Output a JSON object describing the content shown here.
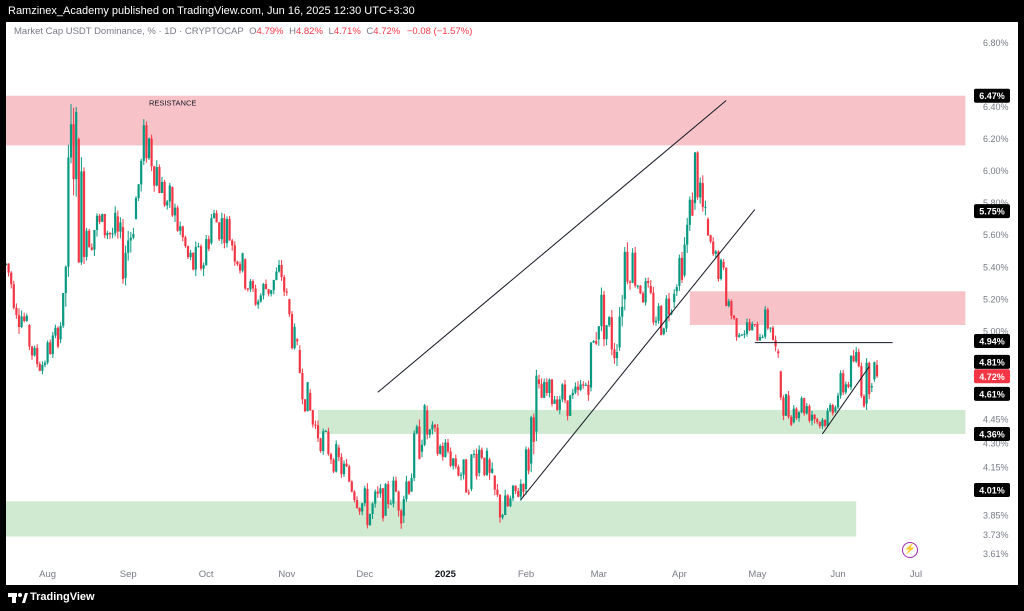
{
  "header": {
    "publish_line": "Ramzinex_Academy published on TradingView.com, Jun 16, 2025 12:30 UTC+3:30"
  },
  "legend": {
    "symbol": "Market Cap USDT Dominance, % · 1D · CRYPTOCAP",
    "o_label": "O",
    "o_value": "4.79%",
    "h_label": "H",
    "h_value": "4.82%",
    "l_label": "L",
    "l_value": "4.71%",
    "c_label": "C",
    "c_value": "4.72%",
    "change": "−0.08 (−1.57%)"
  },
  "footer": {
    "brand": "TradingView"
  },
  "icons": {
    "logo": "tradingview-logo-icon",
    "flash": "flash-icon"
  },
  "colors": {
    "up": "#089981",
    "down": "#f23645",
    "resistance_zone": "#f7b8be",
    "support_zone": "#c8e6c9",
    "line": "#131722",
    "badge_dark": "#000000",
    "badge_last": "#f23645"
  },
  "chart_data": {
    "type": "candlestick",
    "symbol": "Market Cap USDT Dominance, %",
    "interval": "1D",
    "x_labels": [
      "Aug",
      "Sep",
      "Oct",
      "Nov",
      "Dec",
      "2025",
      "Feb",
      "Mar",
      "Apr",
      "May",
      "Jun",
      "Jul"
    ],
    "x_label_dates": [
      "2024-08-01",
      "2024-09-01",
      "2024-10-01",
      "2024-11-01",
      "2024-12-01",
      "2025-01-01",
      "2025-02-01",
      "2025-03-01",
      "2025-04-01",
      "2025-05-01",
      "2025-06-01",
      "2025-07-01"
    ],
    "x_range": [
      "2024-07-16",
      "2025-07-21"
    ],
    "y_ticks": [
      6.8,
      6.4,
      6.2,
      6.0,
      5.8,
      5.6,
      5.4,
      5.2,
      5.0,
      4.45,
      4.3,
      4.15,
      3.85,
      3.73,
      3.61
    ],
    "y_range": [
      3.53,
      6.93
    ],
    "y_unit": "%",
    "grid": false,
    "annotations": [
      {
        "text": "RESISTANCE",
        "date": "2024-09-09",
        "value": 6.41
      }
    ],
    "price_badges": [
      {
        "value": 6.47,
        "text": "6.47%",
        "style": "dark"
      },
      {
        "value": 5.75,
        "text": "5.75%",
        "style": "dark"
      },
      {
        "value": 4.94,
        "text": "4.94%",
        "style": "dark"
      },
      {
        "value": 4.81,
        "text": "4.81%",
        "style": "dark"
      },
      {
        "value": 4.72,
        "text": "4.72%",
        "style": "last"
      },
      {
        "value": 4.61,
        "text": "4.61%",
        "style": "dark"
      },
      {
        "value": 4.36,
        "text": "4.36%",
        "style": "dark"
      },
      {
        "value": 4.01,
        "text": "4.01%",
        "style": "dark"
      }
    ],
    "zones": [
      {
        "kind": "resistance",
        "from": "2024-07-16",
        "to": "2025-07-20",
        "top": 6.47,
        "bottom": 6.16
      },
      {
        "kind": "resistance",
        "from": "2025-04-05",
        "to": "2025-07-20",
        "top": 5.25,
        "bottom": 5.04
      },
      {
        "kind": "support",
        "from": "2024-11-13",
        "to": "2025-07-20",
        "top": 4.51,
        "bottom": 4.36
      },
      {
        "kind": "support",
        "from": "2024-07-16",
        "to": "2025-06-08",
        "top": 3.94,
        "bottom": 3.72
      }
    ],
    "trendlines": [
      {
        "from": [
          "2024-12-06",
          4.62
        ],
        "to": [
          "2025-04-19",
          6.44
        ]
      },
      {
        "from": [
          "2025-01-30",
          3.95
        ],
        "to": [
          "2025-04-30",
          5.76
        ]
      },
      {
        "from": [
          "2025-04-30",
          4.93
        ],
        "to": [
          "2025-06-22",
          4.93
        ]
      },
      {
        "from": [
          "2025-05-26",
          4.36
        ],
        "to": [
          "2025-06-13",
          4.78
        ]
      }
    ],
    "ohlc_anchors": {
      "columns": [
        "date",
        "high",
        "low"
      ],
      "rows": [
        [
          "2024-07-16",
          5.48,
          5.35
        ],
        [
          "2024-07-20",
          5.38,
          5.05
        ],
        [
          "2024-07-24",
          5.1,
          4.9
        ],
        [
          "2024-07-27",
          4.92,
          4.72
        ],
        [
          "2024-07-30",
          4.92,
          4.7
        ],
        [
          "2024-08-02",
          4.98,
          4.82
        ],
        [
          "2024-08-05",
          5.08,
          4.9
        ],
        [
          "2024-08-07",
          5.25,
          5.0
        ],
        [
          "2024-08-09",
          6.2,
          5.3
        ],
        [
          "2024-08-11",
          6.77,
          5.8
        ],
        [
          "2024-08-13",
          6.2,
          5.4
        ],
        [
          "2024-08-16",
          5.95,
          5.45
        ],
        [
          "2024-08-20",
          5.8,
          5.5
        ],
        [
          "2024-08-24",
          5.72,
          5.55
        ],
        [
          "2024-08-27",
          5.75,
          5.45
        ],
        [
          "2024-08-30",
          5.65,
          5.3
        ],
        [
          "2024-09-02",
          5.9,
          5.4
        ],
        [
          "2024-09-04",
          5.95,
          5.7
        ],
        [
          "2024-09-06",
          6.2,
          5.8
        ],
        [
          "2024-09-08",
          6.45,
          6.0
        ],
        [
          "2024-09-11",
          6.25,
          5.9
        ],
        [
          "2024-09-14",
          6.0,
          5.75
        ],
        [
          "2024-09-18",
          5.9,
          5.6
        ],
        [
          "2024-09-21",
          5.75,
          5.5
        ],
        [
          "2024-09-24",
          5.55,
          5.35
        ],
        [
          "2024-09-27",
          5.55,
          5.25
        ],
        [
          "2024-09-30",
          5.62,
          5.3
        ],
        [
          "2024-10-03",
          5.85,
          5.55
        ],
        [
          "2024-10-06",
          5.8,
          5.55
        ],
        [
          "2024-10-09",
          5.75,
          5.55
        ],
        [
          "2024-10-12",
          5.65,
          5.4
        ],
        [
          "2024-10-15",
          5.5,
          5.28
        ],
        [
          "2024-10-18",
          5.35,
          5.15
        ],
        [
          "2024-10-21",
          5.3,
          5.1
        ],
        [
          "2024-10-24",
          5.4,
          5.15
        ],
        [
          "2024-10-27",
          5.42,
          5.2
        ],
        [
          "2024-10-30",
          5.48,
          5.25
        ],
        [
          "2024-11-02",
          5.2,
          4.95
        ],
        [
          "2024-11-05",
          4.95,
          4.72
        ],
        [
          "2024-11-08",
          4.75,
          4.5
        ],
        [
          "2024-11-11",
          4.55,
          4.3
        ],
        [
          "2024-11-14",
          4.45,
          4.25
        ],
        [
          "2024-11-18",
          4.35,
          4.15
        ],
        [
          "2024-11-22",
          4.25,
          4.05
        ],
        [
          "2024-11-26",
          4.15,
          3.95
        ],
        [
          "2024-11-30",
          4.05,
          3.8
        ],
        [
          "2024-12-03",
          4.0,
          3.73
        ],
        [
          "2024-12-06",
          4.05,
          3.8
        ],
        [
          "2024-12-09",
          4.05,
          3.85
        ],
        [
          "2024-12-12",
          4.1,
          3.9
        ],
        [
          "2024-12-15",
          4.15,
          3.8
        ],
        [
          "2024-12-18",
          4.25,
          3.95
        ],
        [
          "2024-12-21",
          4.45,
          4.1
        ],
        [
          "2024-12-23",
          4.62,
          4.25
        ],
        [
          "2024-12-26",
          4.45,
          4.25
        ],
        [
          "2024-12-29",
          4.4,
          4.15
        ],
        [
          "2025-01-02",
          4.35,
          4.15
        ],
        [
          "2025-01-06",
          4.25,
          4.05
        ],
        [
          "2025-01-09",
          4.2,
          3.95
        ],
        [
          "2025-01-12",
          4.35,
          4.05
        ],
        [
          "2025-01-15",
          4.4,
          4.15
        ],
        [
          "2025-01-18",
          4.2,
          3.9
        ],
        [
          "2025-01-21",
          4.05,
          3.8
        ],
        [
          "2025-01-24",
          4.0,
          3.75
        ],
        [
          "2025-01-27",
          4.05,
          3.85
        ],
        [
          "2025-01-30",
          4.15,
          3.95
        ],
        [
          "2025-02-02",
          4.4,
          4.05
        ],
        [
          "2025-02-04",
          4.9,
          4.3
        ],
        [
          "2025-02-06",
          4.7,
          4.45
        ],
        [
          "2025-02-09",
          4.7,
          4.5
        ],
        [
          "2025-02-12",
          4.72,
          4.5
        ],
        [
          "2025-02-15",
          4.7,
          4.5
        ],
        [
          "2025-02-18",
          4.65,
          4.45
        ],
        [
          "2025-02-21",
          4.7,
          4.45
        ],
        [
          "2025-02-24",
          4.8,
          4.55
        ],
        [
          "2025-02-27",
          5.1,
          4.7
        ],
        [
          "2025-03-01",
          5.35,
          4.95
        ],
        [
          "2025-03-04",
          5.2,
          4.9
        ],
        [
          "2025-03-07",
          5.1,
          4.75
        ],
        [
          "2025-03-09",
          5.4,
          4.9
        ],
        [
          "2025-03-11",
          5.75,
          5.2
        ],
        [
          "2025-03-13",
          5.65,
          5.3
        ],
        [
          "2025-03-16",
          5.45,
          5.2
        ],
        [
          "2025-03-19",
          5.35,
          5.1
        ],
        [
          "2025-03-22",
          5.25,
          5.0
        ],
        [
          "2025-03-25",
          5.2,
          4.95
        ],
        [
          "2025-03-28",
          5.35,
          5.05
        ],
        [
          "2025-03-31",
          5.5,
          5.25
        ],
        [
          "2025-04-03",
          5.7,
          5.35
        ],
        [
          "2025-04-05",
          5.9,
          5.5
        ],
        [
          "2025-04-07",
          6.23,
          5.8
        ],
        [
          "2025-04-09",
          6.05,
          5.7
        ],
        [
          "2025-04-11",
          5.8,
          5.45
        ],
        [
          "2025-04-13",
          5.6,
          5.38
        ],
        [
          "2025-04-16",
          5.5,
          5.3
        ],
        [
          "2025-04-19",
          5.4,
          5.1
        ],
        [
          "2025-04-22",
          5.15,
          4.95
        ],
        [
          "2025-04-25",
          5.1,
          4.95
        ],
        [
          "2025-04-28",
          5.1,
          4.92
        ],
        [
          "2025-05-01",
          5.05,
          4.92
        ],
        [
          "2025-05-04",
          5.15,
          4.95
        ],
        [
          "2025-05-06",
          5.2,
          4.95
        ],
        [
          "2025-05-08",
          5.0,
          4.7
        ],
        [
          "2025-05-10",
          4.75,
          4.5
        ],
        [
          "2025-05-13",
          4.6,
          4.4
        ],
        [
          "2025-05-16",
          4.6,
          4.45
        ],
        [
          "2025-05-19",
          4.65,
          4.45
        ],
        [
          "2025-05-22",
          4.6,
          4.4
        ],
        [
          "2025-05-25",
          4.5,
          4.36
        ],
        [
          "2025-05-28",
          4.55,
          4.4
        ],
        [
          "2025-05-31",
          4.7,
          4.5
        ],
        [
          "2025-06-03",
          4.78,
          4.55
        ],
        [
          "2025-06-05",
          4.8,
          4.6
        ],
        [
          "2025-06-07",
          4.95,
          4.7
        ],
        [
          "2025-06-09",
          4.9,
          4.65
        ],
        [
          "2025-06-11",
          4.72,
          4.5
        ],
        [
          "2025-06-13",
          4.93,
          4.6
        ],
        [
          "2025-06-15",
          4.85,
          4.7
        ],
        [
          "2025-06-16",
          4.82,
          4.71
        ]
      ]
    },
    "last_candle": {
      "date": "2025-06-16",
      "open": 4.79,
      "high": 4.82,
      "low": 4.71,
      "close": 4.72
    }
  }
}
